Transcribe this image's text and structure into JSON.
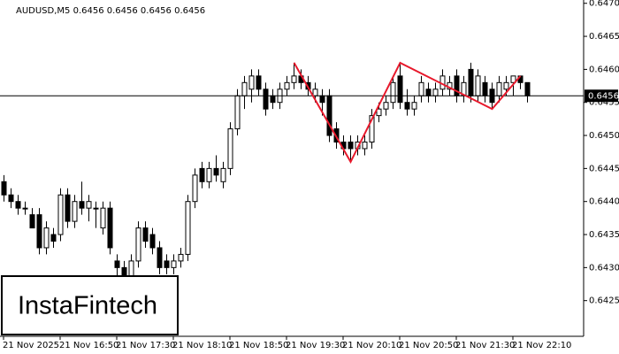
{
  "chart_data": {
    "type": "candlestick",
    "title": "AUDUSD,M5 0.6456 0.6456 0.6456 0.6456",
    "watermark": "InstaFintech",
    "categories": [
      "21 Nov 2025",
      null,
      null,
      null,
      null,
      null,
      null,
      null,
      "21 Nov 16:50",
      null,
      null,
      null,
      null,
      null,
      null,
      null,
      "21 Nov 17:30",
      null,
      null,
      null,
      null,
      null,
      null,
      null,
      "21 Nov 18:10",
      null,
      null,
      null,
      null,
      null,
      null,
      null,
      "21 Nov 18:50",
      null,
      null,
      null,
      null,
      null,
      null,
      null,
      "21 Nov 19:30",
      null,
      null,
      null,
      null,
      null,
      null,
      null,
      "21 Nov 20:10",
      null,
      null,
      null,
      null,
      null,
      null,
      null,
      "21 Nov 20:50",
      null,
      null,
      null,
      null,
      null,
      null,
      null,
      "21 Nov 21:30",
      null,
      null,
      null,
      null,
      null,
      null,
      null,
      "21 Nov 22:10",
      null,
      null
    ],
    "ohlc": [
      [
        0.6443,
        0.6444,
        0.644,
        0.6441
      ],
      [
        0.6441,
        0.6442,
        0.6439,
        0.644
      ],
      [
        0.644,
        0.6441,
        0.6438,
        0.6439
      ],
      [
        0.6439,
        0.644,
        0.6438,
        0.6439
      ],
      [
        0.6438,
        0.6439,
        0.6436,
        0.6436
      ],
      [
        0.6438,
        0.6439,
        0.6432,
        0.6433
      ],
      [
        0.6433,
        0.6437,
        0.6432,
        0.6436
      ],
      [
        0.6435,
        0.6436,
        0.6433,
        0.6434
      ],
      [
        0.6435,
        0.6442,
        0.6434,
        0.6441
      ],
      [
        0.6441,
        0.6442,
        0.6436,
        0.6437
      ],
      [
        0.6437,
        0.6441,
        0.6436,
        0.644
      ],
      [
        0.644,
        0.6443,
        0.6438,
        0.6439
      ],
      [
        0.6439,
        0.6441,
        0.6437,
        0.644
      ],
      [
        0.6439,
        0.644,
        0.6436,
        0.6439
      ],
      [
        0.6436,
        0.644,
        0.6435,
        0.6439
      ],
      [
        0.6439,
        0.644,
        0.6432,
        0.6433
      ],
      [
        0.6431,
        0.6432,
        0.6428,
        0.643
      ],
      [
        0.643,
        0.6431,
        0.6422,
        0.6425
      ],
      [
        0.6425,
        0.6432,
        0.6424,
        0.6431
      ],
      [
        0.6431,
        0.6437,
        0.643,
        0.6436
      ],
      [
        0.6436,
        0.6437,
        0.6433,
        0.6434
      ],
      [
        0.6435,
        0.6436,
        0.6432,
        0.6433
      ],
      [
        0.6433,
        0.6434,
        0.6429,
        0.643
      ],
      [
        0.6431,
        0.6432,
        0.6429,
        0.643
      ],
      [
        0.643,
        0.6432,
        0.6429,
        0.6431
      ],
      [
        0.6431,
        0.6433,
        0.643,
        0.6432
      ],
      [
        0.6432,
        0.6441,
        0.6431,
        0.644
      ],
      [
        0.644,
        0.6445,
        0.6439,
        0.6444
      ],
      [
        0.6445,
        0.6446,
        0.6442,
        0.6443
      ],
      [
        0.6443,
        0.6446,
        0.6442,
        0.6445
      ],
      [
        0.6445,
        0.6447,
        0.6443,
        0.6444
      ],
      [
        0.6443,
        0.6446,
        0.6442,
        0.6445
      ],
      [
        0.6445,
        0.6452,
        0.6444,
        0.6451
      ],
      [
        0.6451,
        0.6457,
        0.645,
        0.6456
      ],
      [
        0.6456,
        0.6459,
        0.6454,
        0.6458
      ],
      [
        0.6457,
        0.646,
        0.6455,
        0.6459
      ],
      [
        0.6459,
        0.646,
        0.6456,
        0.6457
      ],
      [
        0.6457,
        0.6458,
        0.6453,
        0.6454
      ],
      [
        0.6456,
        0.6457,
        0.6454,
        0.6455
      ],
      [
        0.6455,
        0.6458,
        0.6454,
        0.6457
      ],
      [
        0.6457,
        0.6459,
        0.6456,
        0.6458
      ],
      [
        0.6458,
        0.6461,
        0.6457,
        0.6459
      ],
      [
        0.6459,
        0.646,
        0.6457,
        0.6458
      ],
      [
        0.6458,
        0.6459,
        0.6456,
        0.6457
      ],
      [
        0.6456,
        0.6458,
        0.6455,
        0.6457
      ],
      [
        0.6456,
        0.6457,
        0.6453,
        0.6455
      ],
      [
        0.6456,
        0.6457,
        0.6449,
        0.645
      ],
      [
        0.6451,
        0.6452,
        0.6448,
        0.6449
      ],
      [
        0.6449,
        0.645,
        0.6447,
        0.6448
      ],
      [
        0.6449,
        0.645,
        0.6446,
        0.6448
      ],
      [
        0.6448,
        0.645,
        0.6447,
        0.6449
      ],
      [
        0.6448,
        0.645,
        0.6447,
        0.6449
      ],
      [
        0.6449,
        0.6454,
        0.6448,
        0.6453
      ],
      [
        0.6453,
        0.6455,
        0.6452,
        0.6454
      ],
      [
        0.6454,
        0.6456,
        0.6453,
        0.6455
      ],
      [
        0.6455,
        0.6459,
        0.6454,
        0.6458
      ],
      [
        0.6459,
        0.6461,
        0.6454,
        0.6455
      ],
      [
        0.6455,
        0.6457,
        0.6453,
        0.6454
      ],
      [
        0.6454,
        0.6456,
        0.6453,
        0.6455
      ],
      [
        0.6456,
        0.6459,
        0.6455,
        0.6458
      ],
      [
        0.6457,
        0.6458,
        0.6455,
        0.6456
      ],
      [
        0.6456,
        0.6458,
        0.6455,
        0.6457
      ],
      [
        0.6457,
        0.646,
        0.6456,
        0.6459
      ],
      [
        0.6457,
        0.6459,
        0.6456,
        0.6458
      ],
      [
        0.6459,
        0.646,
        0.6455,
        0.6456
      ],
      [
        0.6456,
        0.6459,
        0.6455,
        0.6458
      ],
      [
        0.646,
        0.6461,
        0.6455,
        0.6456
      ],
      [
        0.6456,
        0.646,
        0.6455,
        0.6459
      ],
      [
        0.6458,
        0.6459,
        0.6455,
        0.6456
      ],
      [
        0.6457,
        0.6458,
        0.6454,
        0.6455
      ],
      [
        0.6456,
        0.6459,
        0.6455,
        0.6458
      ],
      [
        0.6457,
        0.6459,
        0.6456,
        0.6458
      ],
      [
        0.6458,
        0.6459,
        0.6456,
        0.6459
      ],
      [
        0.6459,
        0.6459,
        0.6457,
        0.6458
      ],
      [
        0.6458,
        0.6458,
        0.6455,
        0.6456
      ]
    ],
    "up_color": "#ffffff",
    "down_color": "#000000",
    "wick_color": "#000000",
    "current_price": 0.6456,
    "pattern": {
      "color": "#e8192c",
      "x": [
        41,
        49,
        56,
        69,
        73
      ],
      "values": [
        0.6461,
        0.6446,
        0.6461,
        0.6454,
        0.6459
      ]
    },
    "ylim": [
      0.64196,
      0.64705
    ],
    "yticks": [
      0.6425,
      {
        "value": 0.643,
        "label": "0.6430"
      },
      0.6435,
      {
        "value": 0.644,
        "label": "0.6440"
      },
      0.6445,
      {
        "value": 0.645,
        "label": "0.6450"
      },
      0.6455,
      {
        "value": 0.646,
        "label": "0.6460"
      },
      0.6465,
      {
        "value": 0.647,
        "label": "0.6470"
      }
    ]
  }
}
